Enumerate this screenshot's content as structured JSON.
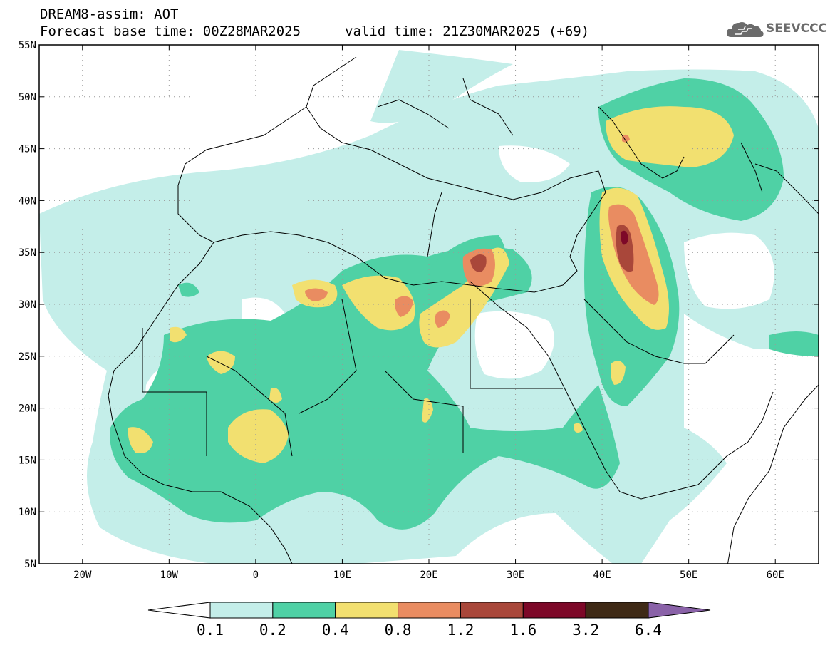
{
  "header": {
    "title": "DREAM8-assim: AOT",
    "base_time": "Forecast base time: 00Z28MAR2025",
    "valid_time": "valid time: 21Z30MAR2025 (+69)"
  },
  "logo": {
    "text": "SEEVCCC",
    "icon": "cloud-icon"
  },
  "map": {
    "variable": "AOT",
    "lon_range": [
      -25,
      65
    ],
    "lat_range": [
      5,
      55
    ],
    "lat_ticks": [
      "5N",
      "10N",
      "15N",
      "20N",
      "25N",
      "30N",
      "35N",
      "40N",
      "45N",
      "50N",
      "55N"
    ],
    "lon_ticks": [
      "20W",
      "10W",
      "0",
      "10E",
      "20E",
      "30E",
      "40E",
      "50E",
      "60E"
    ],
    "grid": "dotted"
  },
  "colorbar": {
    "levels": [
      "0.1",
      "0.2",
      "0.4",
      "0.8",
      "1.2",
      "1.6",
      "3.2",
      "6.4"
    ],
    "colors": [
      "#ffffff",
      "#c4eee9",
      "#4fd1a5",
      "#f2e070",
      "#e98c61",
      "#a9473a",
      "#7d0828",
      "#3f2a16",
      "#8a62a8"
    ]
  }
}
